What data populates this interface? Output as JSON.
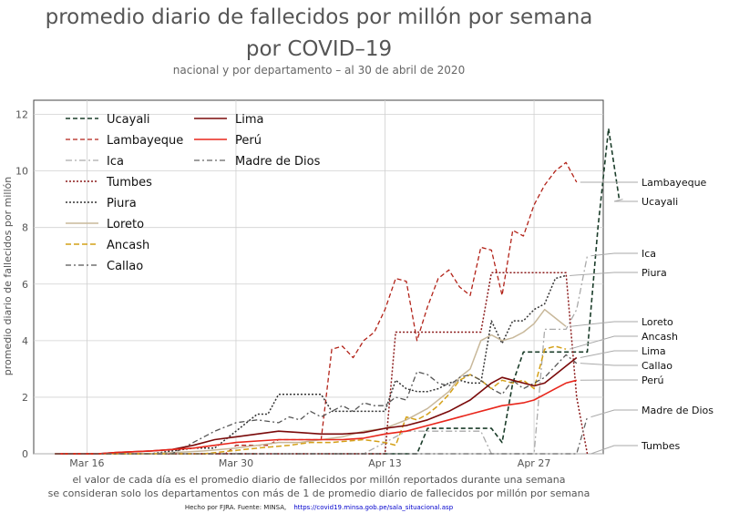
{
  "chart_data": {
    "type": "line",
    "title_line1": "promedio diario de fallecidos por millón por semana",
    "title_line2": "por COVID–19",
    "subtitle": "nacional y por departamento – al 30 de abril de 2020",
    "ylabel": "promedio diario de fallecidos por millón",
    "xlabel": "",
    "caption_line1": "el valor de cada día es el promedio diario de fallecidos por millón reportados durante una semana",
    "caption_line2": "se consideran solo los departamentos con más de 1 de promedio diario de fallecidos por millón por semana",
    "credit_text": "Hecho por FJRA. Fuente: MINSA,",
    "credit_url": "https://covid19.minsa.gob.pe/sala_situacional.asp",
    "ylim": [
      0,
      12.5
    ],
    "yticks": [
      0,
      2,
      4,
      6,
      8,
      10,
      12
    ],
    "xticks": [
      {
        "day": 14,
        "label": "Mar 16"
      },
      {
        "day": 28,
        "label": "Mar 30"
      },
      {
        "day": 42,
        "label": "Apr 13"
      },
      {
        "day": 56,
        "label": "Apr 27"
      }
    ],
    "x_start_date": "2020-03-02",
    "x_end_date": "2020-04-30",
    "grid": true,
    "legend_position": "top-left",
    "series": [
      {
        "name": "Ucayali",
        "color": "#1b3d2a",
        "dash": "5,3",
        "width": 1.6,
        "end_label": "Ucayali",
        "points": [
          [
            11,
            0
          ],
          [
            20,
            0
          ],
          [
            30,
            0
          ],
          [
            40,
            0
          ],
          [
            45,
            0
          ],
          [
            46,
            0.9
          ],
          [
            47,
            0.9
          ],
          [
            48,
            0.9
          ],
          [
            49,
            0.9
          ],
          [
            50,
            0.9
          ],
          [
            51,
            0.9
          ],
          [
            52,
            0.9
          ],
          [
            53,
            0.4
          ],
          [
            54,
            2.5
          ],
          [
            55,
            3.6
          ],
          [
            56,
            3.6
          ],
          [
            57,
            3.6
          ],
          [
            58,
            3.6
          ],
          [
            59,
            3.6
          ],
          [
            60,
            3.6
          ],
          [
            61,
            3.6
          ],
          [
            62,
            8
          ],
          [
            63,
            11.5
          ],
          [
            64,
            9
          ]
        ]
      },
      {
        "name": "Lambayeque",
        "color": "#b22218",
        "dash": "5,3",
        "width": 1.3,
        "end_label": "Lambayeque",
        "points": [
          [
            11,
            0
          ],
          [
            27,
            0
          ],
          [
            28,
            0.3
          ],
          [
            29,
            0.3
          ],
          [
            30,
            0.3
          ],
          [
            31,
            0.3
          ],
          [
            32,
            0.5
          ],
          [
            33,
            0.5
          ],
          [
            34,
            0.5
          ],
          [
            35,
            0.5
          ],
          [
            36,
            0.5
          ],
          [
            37,
            3.7
          ],
          [
            38,
            3.8
          ],
          [
            39,
            3.4
          ],
          [
            40,
            4
          ],
          [
            41,
            4.3
          ],
          [
            42,
            5.1
          ],
          [
            43,
            6.2
          ],
          [
            44,
            6.1
          ],
          [
            45,
            4
          ],
          [
            46,
            5.2
          ],
          [
            47,
            6.2
          ],
          [
            48,
            6.5
          ],
          [
            49,
            5.9
          ],
          [
            50,
            5.6
          ],
          [
            51,
            7.3
          ],
          [
            52,
            7.2
          ],
          [
            53,
            5.6
          ],
          [
            54,
            7.9
          ],
          [
            55,
            7.7
          ],
          [
            56,
            8.8
          ],
          [
            57,
            9.5
          ],
          [
            58,
            10
          ],
          [
            59,
            10.3
          ],
          [
            60,
            9.6
          ]
        ]
      },
      {
        "name": "Ica",
        "color": "#aaaaaa",
        "dash": "7,3,2,3",
        "width": 1.3,
        "end_label": "Ica",
        "points": [
          [
            11,
            0
          ],
          [
            30,
            0
          ],
          [
            40,
            0
          ],
          [
            44,
            0.8
          ],
          [
            46,
            0.8
          ],
          [
            48,
            0.8
          ],
          [
            50,
            0.8
          ],
          [
            51,
            0.8
          ],
          [
            52,
            0
          ],
          [
            55,
            0
          ],
          [
            56,
            0
          ],
          [
            57,
            4.4
          ],
          [
            58,
            4.4
          ],
          [
            59,
            4.4
          ],
          [
            60,
            5.1
          ],
          [
            61,
            7
          ]
        ]
      },
      {
        "name": "Tumbes",
        "color": "#8b1a1a",
        "dash": "2,2",
        "width": 1.5,
        "end_label": "Tumbes",
        "points": [
          [
            11,
            0
          ],
          [
            35,
            0
          ],
          [
            42,
            0
          ],
          [
            43,
            4.3
          ],
          [
            44,
            4.3
          ],
          [
            45,
            4.3
          ],
          [
            46,
            4.3
          ],
          [
            47,
            4.3
          ],
          [
            48,
            4.3
          ],
          [
            49,
            4.3
          ],
          [
            50,
            4.3
          ],
          [
            51,
            4.3
          ],
          [
            52,
            6.4
          ],
          [
            53,
            6.4
          ],
          [
            54,
            6.4
          ],
          [
            55,
            6.4
          ],
          [
            56,
            6.4
          ],
          [
            57,
            6.4
          ],
          [
            58,
            6.4
          ],
          [
            59,
            6.4
          ],
          [
            60,
            2
          ],
          [
            61,
            0
          ]
        ]
      },
      {
        "name": "Piura",
        "color": "#333333",
        "dash": "2,2",
        "width": 1.5,
        "end_label": "Piura",
        "points": [
          [
            11,
            0
          ],
          [
            20,
            0
          ],
          [
            24,
            0.2
          ],
          [
            26,
            0.2
          ],
          [
            28,
            0.8
          ],
          [
            30,
            1.4
          ],
          [
            31,
            1.4
          ],
          [
            32,
            2.1
          ],
          [
            33,
            2.1
          ],
          [
            34,
            2.1
          ],
          [
            35,
            2.1
          ],
          [
            36,
            2.1
          ],
          [
            37,
            1.5
          ],
          [
            38,
            1.5
          ],
          [
            39,
            1.5
          ],
          [
            40,
            1.5
          ],
          [
            41,
            1.5
          ],
          [
            42,
            1.5
          ],
          [
            43,
            2.6
          ],
          [
            44,
            2.3
          ],
          [
            45,
            2.2
          ],
          [
            46,
            2.2
          ],
          [
            47,
            2.3
          ],
          [
            48,
            2.5
          ],
          [
            49,
            2.6
          ],
          [
            50,
            2.5
          ],
          [
            51,
            2.5
          ],
          [
            52,
            4.7
          ],
          [
            53,
            3.9
          ],
          [
            54,
            4.7
          ],
          [
            55,
            4.7
          ],
          [
            56,
            5.1
          ],
          [
            57,
            5.3
          ],
          [
            58,
            6.2
          ],
          [
            59,
            6.3
          ]
        ]
      },
      {
        "name": "Loreto",
        "color": "#c8b89a",
        "dash": "",
        "width": 1.5,
        "end_label": "Loreto",
        "points": [
          [
            11,
            0
          ],
          [
            20,
            0
          ],
          [
            25,
            0.1
          ],
          [
            28,
            0.2
          ],
          [
            30,
            0.3
          ],
          [
            32,
            0.4
          ],
          [
            34,
            0.4
          ],
          [
            36,
            0.5
          ],
          [
            38,
            0.6
          ],
          [
            40,
            0.8
          ],
          [
            42,
            0.9
          ],
          [
            44,
            1.2
          ],
          [
            46,
            1.6
          ],
          [
            48,
            2.2
          ],
          [
            49,
            2.7
          ],
          [
            50,
            3
          ],
          [
            51,
            4
          ],
          [
            52,
            4.2
          ],
          [
            53,
            4
          ],
          [
            54,
            4.1
          ],
          [
            55,
            4.3
          ],
          [
            56,
            4.6
          ],
          [
            57,
            5.1
          ],
          [
            58,
            4.8
          ],
          [
            59,
            4.5
          ]
        ]
      },
      {
        "name": "Ancash",
        "color": "#d4a017",
        "dash": "6,3",
        "width": 1.5,
        "end_label": "Ancash",
        "points": [
          [
            11,
            0
          ],
          [
            20,
            0
          ],
          [
            25,
            0
          ],
          [
            30,
            0.2
          ],
          [
            33,
            0.3
          ],
          [
            35,
            0.4
          ],
          [
            37,
            0.4
          ],
          [
            40,
            0.5
          ],
          [
            42,
            0.4
          ],
          [
            43,
            0.3
          ],
          [
            44,
            1.3
          ],
          [
            45,
            1.2
          ],
          [
            46,
            1.4
          ],
          [
            47,
            1.7
          ],
          [
            48,
            2.1
          ],
          [
            49,
            2.6
          ],
          [
            50,
            2.8
          ],
          [
            51,
            2.6
          ],
          [
            52,
            2.3
          ],
          [
            53,
            2.6
          ],
          [
            54,
            2.5
          ],
          [
            55,
            2.6
          ],
          [
            56,
            2.3
          ],
          [
            57,
            3.7
          ],
          [
            58,
            3.8
          ],
          [
            59,
            3.7
          ]
        ]
      },
      {
        "name": "Callao",
        "color": "#555555",
        "dash": "6,3,2,3",
        "width": 1.3,
        "end_label": "Callao",
        "points": [
          [
            11,
            0
          ],
          [
            20,
            0
          ],
          [
            22,
            0
          ],
          [
            24,
            0.4
          ],
          [
            26,
            0.8
          ],
          [
            28,
            1.1
          ],
          [
            30,
            1.2
          ],
          [
            32,
            1.1
          ],
          [
            33,
            1.3
          ],
          [
            34,
            1.2
          ],
          [
            35,
            1.5
          ],
          [
            36,
            1.3
          ],
          [
            37,
            1.5
          ],
          [
            38,
            1.7
          ],
          [
            39,
            1.5
          ],
          [
            40,
            1.8
          ],
          [
            41,
            1.7
          ],
          [
            42,
            1.7
          ],
          [
            43,
            2
          ],
          [
            44,
            1.9
          ],
          [
            45,
            2.9
          ],
          [
            46,
            2.8
          ],
          [
            47,
            2.5
          ],
          [
            48,
            2.4
          ],
          [
            49,
            2.7
          ],
          [
            50,
            2.8
          ],
          [
            51,
            2.6
          ],
          [
            52,
            2.3
          ],
          [
            53,
            2.1
          ],
          [
            54,
            2.6
          ],
          [
            55,
            2.3
          ],
          [
            56,
            2.5
          ],
          [
            57,
            2.7
          ],
          [
            58,
            3.1
          ],
          [
            59,
            3.5
          ],
          [
            60,
            3.2
          ]
        ]
      },
      {
        "name": "Lima",
        "color": "#7a0a0a",
        "dash": "",
        "width": 1.6,
        "end_label": "Lima",
        "points": [
          [
            11,
            0
          ],
          [
            15,
            0
          ],
          [
            17,
            0.05
          ],
          [
            20,
            0.1
          ],
          [
            22,
            0.15
          ],
          [
            24,
            0.3
          ],
          [
            26,
            0.5
          ],
          [
            28,
            0.6
          ],
          [
            30,
            0.7
          ],
          [
            32,
            0.8
          ],
          [
            34,
            0.75
          ],
          [
            36,
            0.7
          ],
          [
            38,
            0.7
          ],
          [
            40,
            0.75
          ],
          [
            42,
            0.9
          ],
          [
            44,
            1
          ],
          [
            46,
            1.2
          ],
          [
            48,
            1.5
          ],
          [
            50,
            1.9
          ],
          [
            52,
            2.5
          ],
          [
            53,
            2.7
          ],
          [
            54,
            2.6
          ],
          [
            55,
            2.5
          ],
          [
            56,
            2.4
          ],
          [
            57,
            2.5
          ],
          [
            58,
            2.8
          ],
          [
            59,
            3.1
          ],
          [
            60,
            3.4
          ]
        ]
      },
      {
        "name": "Perú",
        "color": "#e8261b",
        "dash": "",
        "width": 1.6,
        "end_label": "Perú",
        "points": [
          [
            11,
            0
          ],
          [
            15,
            0
          ],
          [
            17,
            0.05
          ],
          [
            20,
            0.1
          ],
          [
            22,
            0.15
          ],
          [
            24,
            0.2
          ],
          [
            26,
            0.3
          ],
          [
            28,
            0.4
          ],
          [
            30,
            0.45
          ],
          [
            32,
            0.5
          ],
          [
            34,
            0.5
          ],
          [
            36,
            0.5
          ],
          [
            38,
            0.5
          ],
          [
            40,
            0.55
          ],
          [
            42,
            0.7
          ],
          [
            44,
            0.8
          ],
          [
            46,
            1
          ],
          [
            48,
            1.2
          ],
          [
            50,
            1.4
          ],
          [
            52,
            1.6
          ],
          [
            53,
            1.7
          ],
          [
            54,
            1.75
          ],
          [
            55,
            1.8
          ],
          [
            56,
            1.9
          ],
          [
            57,
            2.1
          ],
          [
            58,
            2.3
          ],
          [
            59,
            2.5
          ],
          [
            60,
            2.6
          ]
        ]
      },
      {
        "name": "Madre de Dios",
        "color": "#666666",
        "dash": "6,3,2,3",
        "width": 1.3,
        "end_label": "Madre de Dios",
        "points": [
          [
            11,
            0
          ],
          [
            20,
            0
          ],
          [
            30,
            0
          ],
          [
            40,
            0
          ],
          [
            44,
            0
          ],
          [
            48,
            0
          ],
          [
            52,
            0
          ],
          [
            56,
            0
          ],
          [
            58,
            0
          ],
          [
            59,
            0
          ],
          [
            60,
            0
          ],
          [
            61,
            1.3
          ]
        ]
      }
    ]
  }
}
